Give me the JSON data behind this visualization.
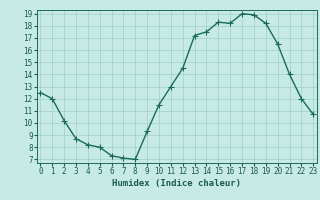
{
  "x": [
    0,
    1,
    2,
    3,
    4,
    5,
    6,
    7,
    8,
    9,
    10,
    11,
    12,
    13,
    14,
    15,
    16,
    17,
    18,
    19,
    20,
    21,
    22,
    23
  ],
  "y": [
    12.5,
    12.0,
    10.2,
    8.7,
    8.2,
    8.0,
    7.3,
    7.1,
    7.0,
    9.3,
    11.5,
    13.0,
    14.5,
    17.2,
    17.5,
    18.3,
    18.2,
    19.0,
    18.9,
    18.2,
    16.5,
    14.0,
    12.0,
    10.7
  ],
  "xlabel": "Humidex (Indice chaleur)",
  "ylabel": "",
  "xlim": [
    -0.3,
    23.3
  ],
  "ylim": [
    6.7,
    19.3
  ],
  "yticks": [
    7,
    8,
    9,
    10,
    11,
    12,
    13,
    14,
    15,
    16,
    17,
    18,
    19
  ],
  "xticks": [
    0,
    1,
    2,
    3,
    4,
    5,
    6,
    7,
    8,
    9,
    10,
    11,
    12,
    13,
    14,
    15,
    16,
    17,
    18,
    19,
    20,
    21,
    22,
    23
  ],
  "line_color": "#1a6b5a",
  "marker": "+",
  "background_color": "#c8eae6",
  "grid_color": "#9ecfca",
  "tick_label_color": "#1a5c4e",
  "xlabel_color": "#1a5c4e",
  "line_width": 1.0,
  "marker_size": 4,
  "tick_fontsize": 5.5,
  "xlabel_fontsize": 6.5
}
